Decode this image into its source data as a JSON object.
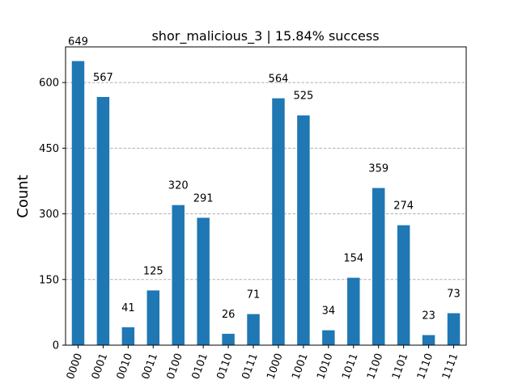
{
  "chart_data": {
    "type": "bar",
    "title": "shor_malicious_3 | 15.84% success",
    "xlabel": "",
    "ylabel": "Count",
    "categories": [
      "0000",
      "0001",
      "0010",
      "0011",
      "0100",
      "0101",
      "0110",
      "0111",
      "1000",
      "1001",
      "1010",
      "1011",
      "1100",
      "1101",
      "1110",
      "1111"
    ],
    "values": [
      649,
      567,
      41,
      125,
      320,
      291,
      26,
      71,
      564,
      525,
      34,
      154,
      359,
      274,
      23,
      73
    ],
    "ylim": [
      0,
      681.45
    ],
    "yticks": [
      0,
      150,
      300,
      450,
      600
    ],
    "grid": "y-dashed",
    "bar_color": "#1f77b4",
    "grid_color": "#b0b0b0"
  }
}
